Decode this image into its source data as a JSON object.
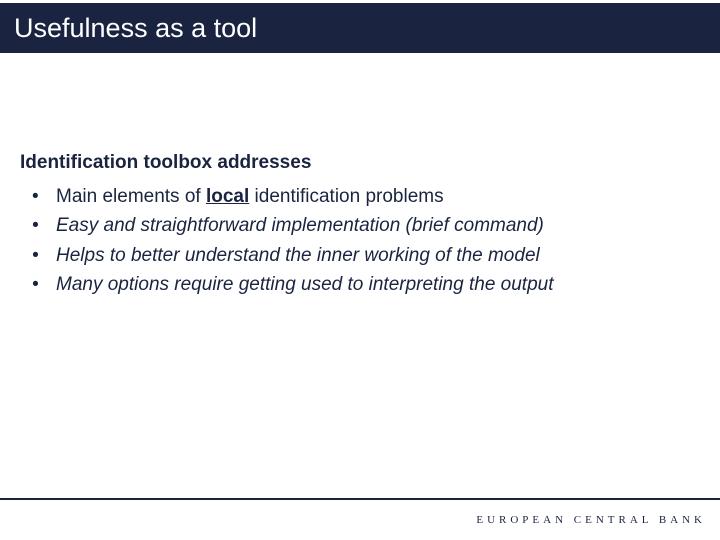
{
  "title": "Usefulness as a tool",
  "subtitle": "Identification toolbox addresses",
  "bullets": [
    {
      "pre": "Main elements of ",
      "emph": "local",
      "post": " identification problems",
      "italic": false
    },
    {
      "pre": "Easy and straightforward implementation (brief command)",
      "emph": "",
      "post": "",
      "italic": true
    },
    {
      "pre": "Helps to better understand the inner working of the model",
      "emph": "",
      "post": "",
      "italic": true
    },
    {
      "pre": "Many options require getting used to interpreting the output",
      "emph": "",
      "post": "",
      "italic": true
    }
  ],
  "footer_brand": "EUROPEAN CENTRAL BANK",
  "colors": {
    "band": "#1a2440",
    "text": "#1a2440",
    "background": "#ffffff"
  },
  "fontsizes": {
    "title": 27,
    "subtitle": 19,
    "bullet": 19,
    "footer": 11
  }
}
